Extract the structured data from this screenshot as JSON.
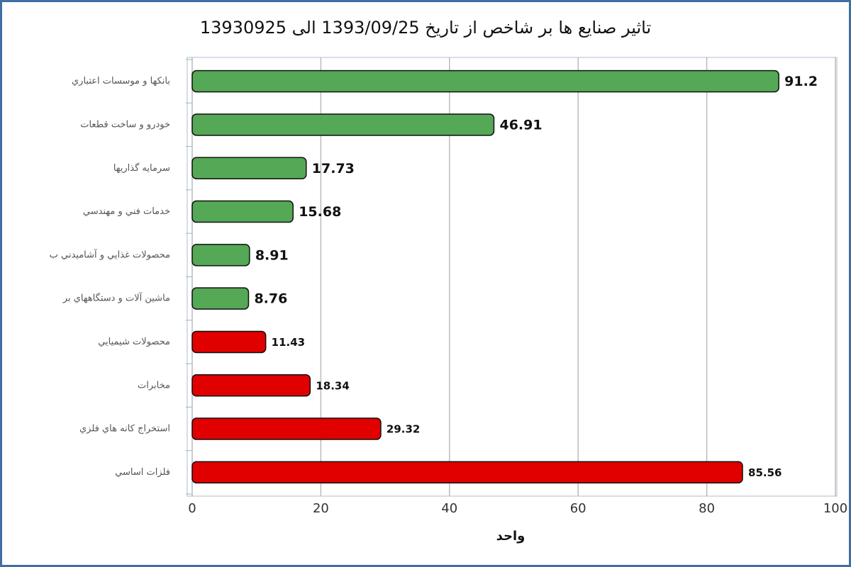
{
  "chart_data": {
    "type": "hbar",
    "title": "تاثیر صنایع ها بر شاخص از تاریخ 1393/09/25 الی 13930925",
    "x_label": "واحد",
    "categories": [
      "بانکها و موسسات اعتباري",
      "خودرو و ساخت قطعات",
      "سرمايه گذاريها",
      "خدمات فني و مهندسي",
      "محصولات غذايي و آشاميدني ب",
      "ماشين آلات و دستگاههاي بر",
      "محصولات شيميايي",
      "مخابرات",
      "استخراج کانه هاي فلزي",
      "فلزات اساسي"
    ],
    "values": [
      91.2,
      46.91,
      17.73,
      15.68,
      8.91,
      8.76,
      11.43,
      18.34,
      29.32,
      85.56
    ],
    "colors": [
      "#55a855",
      "#55a855",
      "#55a855",
      "#55a855",
      "#55a855",
      "#55a855",
      "#e00000",
      "#e00000",
      "#e00000",
      "#e00000"
    ],
    "xlim": [
      0,
      100
    ],
    "xticks": [
      0,
      20,
      40,
      60,
      80,
      100
    ],
    "grid": true
  }
}
